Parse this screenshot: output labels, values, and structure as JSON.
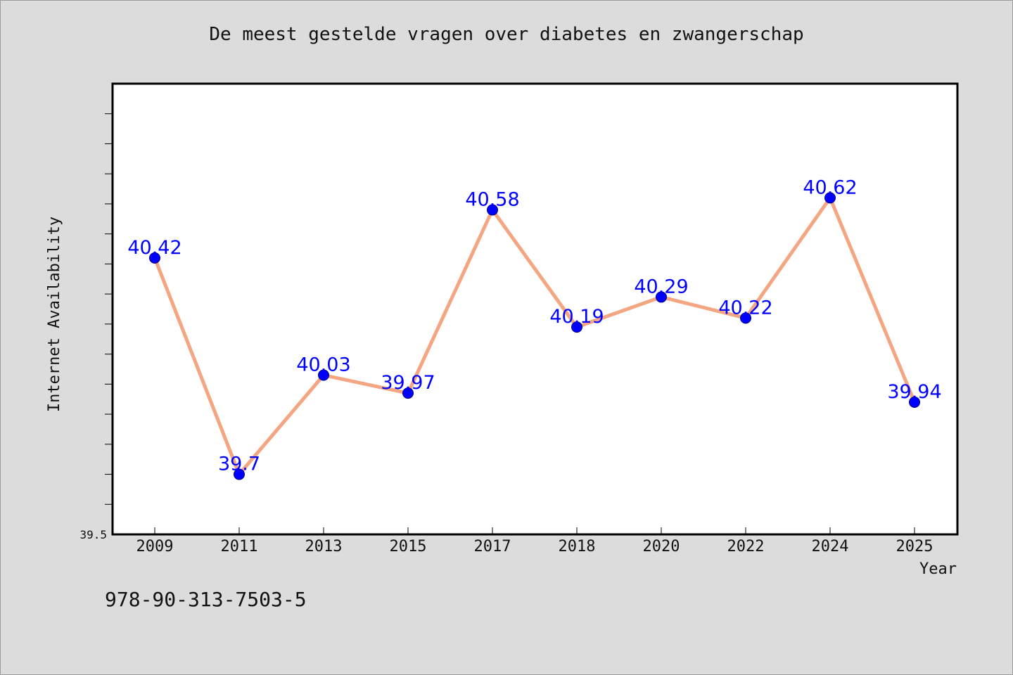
{
  "chart_data": {
    "type": "line",
    "title": "De meest gestelde vragen over diabetes en zwangerschap",
    "xlabel": "Year",
    "ylabel": "Internet Availability",
    "categories": [
      "2009",
      "2011",
      "2013",
      "2015",
      "2017",
      "2018",
      "2020",
      "2022",
      "2024",
      "2025"
    ],
    "series": [
      {
        "values": [
          40.42,
          39.7,
          40.03,
          39.97,
          40.58,
          40.19,
          40.29,
          40.22,
          40.62,
          39.94
        ],
        "labels": [
          "40.42",
          "39.7",
          "40.03",
          "39.97",
          "40.58",
          "40.19",
          "40.29",
          "40.22",
          "40.62",
          "39.94"
        ]
      }
    ],
    "ylim": [
      39.5,
      41.0
    ],
    "y_tick_labels": [
      "39.5"
    ],
    "grid": false,
    "legend": "none",
    "colors": {
      "line": "#f4a582",
      "marker": "#0000ff",
      "data_label": "#0000ff",
      "plot_background": "#ffffff",
      "page_background": "#dcdcdc"
    }
  },
  "footer": {
    "isbn": "978-90-313-7503-5"
  }
}
